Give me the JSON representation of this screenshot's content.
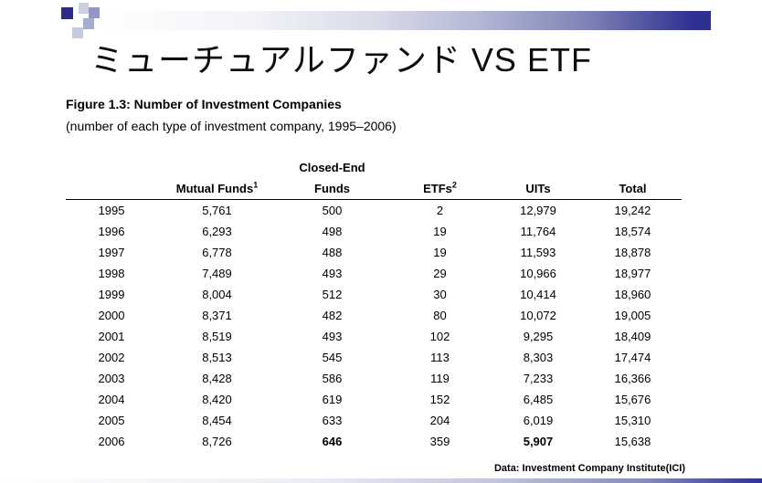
{
  "slide": {
    "title": "ミューチュアルファンド VS ETF",
    "figure_title": "Figure 1.3: Number of Investment Companies",
    "figure_subtitle": "(number of each type of investment company, 1995–2006)",
    "source_note": "Data: Investment Company Institute(ICI)"
  },
  "colors": {
    "accent_dark": "#2e3192",
    "mosaic_squares": [
      "#2c2e83",
      "#ccd0e2",
      "#9298c5",
      "#a6abd0",
      "#c6cade"
    ]
  },
  "table": {
    "group_header": "Closed-End",
    "columns": [
      {
        "label": "",
        "sup": ""
      },
      {
        "label": "Mutual Funds",
        "sup": "1"
      },
      {
        "label": "Funds",
        "sup": ""
      },
      {
        "label": "ETFs",
        "sup": "2"
      },
      {
        "label": "UITs",
        "sup": ""
      },
      {
        "label": "Total",
        "sup": ""
      }
    ],
    "rows": [
      [
        "1995",
        "5,761",
        "500",
        "2",
        "12,979",
        "19,242"
      ],
      [
        "1996",
        "6,293",
        "498",
        "19",
        "11,764",
        "18,574"
      ],
      [
        "1997",
        "6,778",
        "488",
        "19",
        "11,593",
        "18,878"
      ],
      [
        "1998",
        "7,489",
        "493",
        "29",
        "10,966",
        "18,977"
      ],
      [
        "1999",
        "8,004",
        "512",
        "30",
        "10,414",
        "18,960"
      ],
      [
        "2000",
        "8,371",
        "482",
        "80",
        "10,072",
        "19,005"
      ],
      [
        "2001",
        "8,519",
        "493",
        "102",
        "9,295",
        "18,409"
      ],
      [
        "2002",
        "8,513",
        "545",
        "113",
        "8,303",
        "17,474"
      ],
      [
        "2003",
        "8,428",
        "586",
        "119",
        "7,233",
        "16,366"
      ],
      [
        "2004",
        "8,420",
        "619",
        "152",
        "6,485",
        "15,676"
      ],
      [
        "2005",
        "8,454",
        "633",
        "204",
        "6,019",
        "15,310"
      ],
      [
        "2006",
        "8,726",
        "646",
        "359",
        "5,907",
        "15,638"
      ]
    ],
    "bold_cells": [
      {
        "row": 11,
        "cols": [
          2,
          4
        ]
      }
    ]
  }
}
